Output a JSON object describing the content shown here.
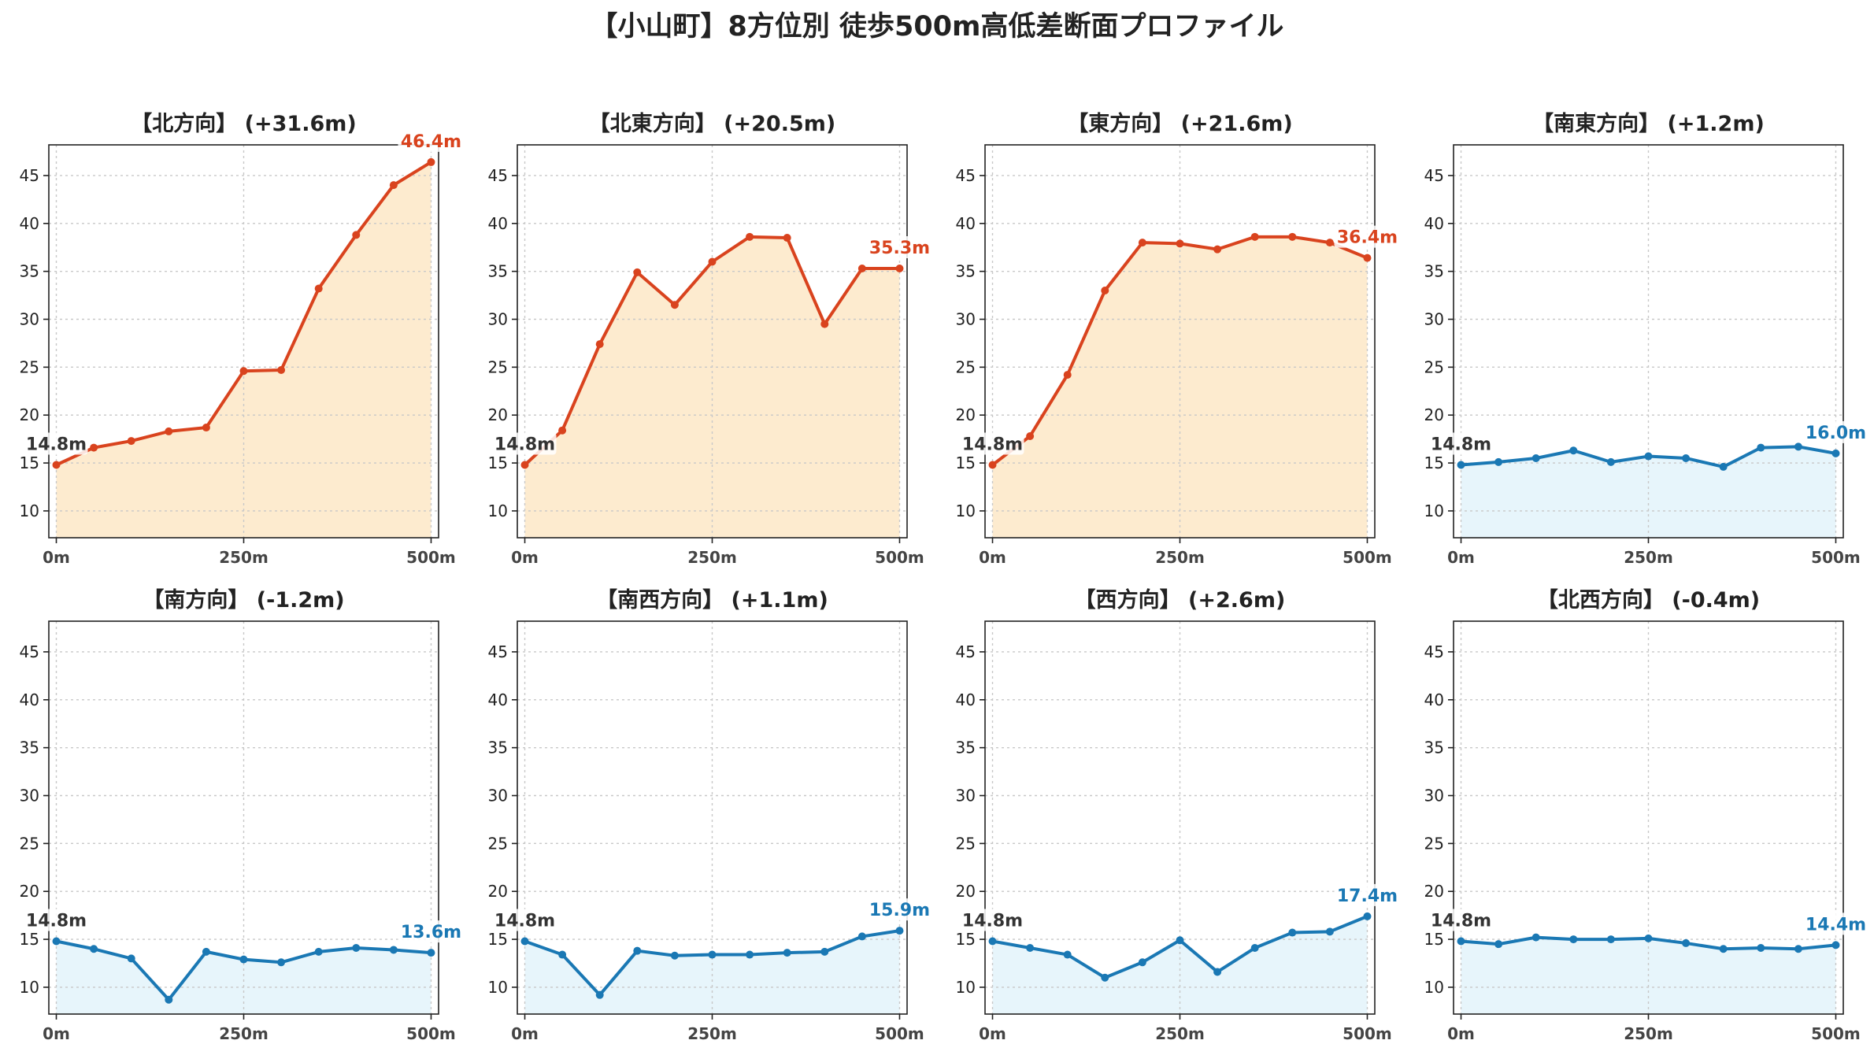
{
  "title": "【小山町】8方位別 徒歩500m高低差断面プロファイル",
  "colors": {
    "up_line": "#d9431e",
    "up_fill": "#fdebcf",
    "flat_line": "#1a78b4",
    "flat_fill": "#e7f5fb",
    "start_label": "#333333"
  },
  "chart_data": [
    {
      "type": "area",
      "title": "【北方向】 (+31.6m)",
      "x": [
        0,
        50,
        100,
        150,
        200,
        250,
        300,
        350,
        400,
        450,
        500
      ],
      "y": [
        14.8,
        16.6,
        17.3,
        18.3,
        18.7,
        24.6,
        24.7,
        33.2,
        38.8,
        44.0,
        46.4
      ],
      "start_label": "14.8m",
      "end_label": "46.4m",
      "trend": "up",
      "x_ticks": [
        "0m",
        "250m",
        "500m"
      ],
      "y_ticks": [
        10,
        15,
        20,
        25,
        30,
        35,
        40,
        45
      ],
      "ylim": [
        7.2,
        48.2
      ],
      "xlim": [
        -10,
        510
      ],
      "grid": true
    },
    {
      "type": "area",
      "title": "【北東方向】 (+20.5m)",
      "x": [
        0,
        50,
        100,
        150,
        200,
        250,
        300,
        350,
        400,
        450,
        500
      ],
      "y": [
        14.8,
        18.4,
        27.4,
        34.9,
        31.5,
        36.0,
        38.6,
        38.5,
        29.5,
        35.3,
        35.3
      ],
      "start_label": "14.8m",
      "end_label": "35.3m",
      "trend": "up",
      "x_ticks": [
        "0m",
        "250m",
        "500m"
      ],
      "y_ticks": [
        10,
        15,
        20,
        25,
        30,
        35,
        40,
        45
      ],
      "ylim": [
        7.2,
        48.2
      ],
      "xlim": [
        -10,
        510
      ],
      "grid": true
    },
    {
      "type": "area",
      "title": "【東方向】 (+21.6m)",
      "x": [
        0,
        50,
        100,
        150,
        200,
        250,
        300,
        350,
        400,
        450,
        500
      ],
      "y": [
        14.8,
        17.8,
        24.2,
        33.0,
        38.0,
        37.9,
        37.3,
        38.6,
        38.6,
        38.0,
        36.4
      ],
      "start_label": "14.8m",
      "end_label": "36.4m",
      "trend": "up",
      "x_ticks": [
        "0m",
        "250m",
        "500m"
      ],
      "y_ticks": [
        10,
        15,
        20,
        25,
        30,
        35,
        40,
        45
      ],
      "ylim": [
        7.2,
        48.2
      ],
      "xlim": [
        -10,
        510
      ],
      "grid": true
    },
    {
      "type": "area",
      "title": "【南東方向】 (+1.2m)",
      "x": [
        0,
        50,
        100,
        150,
        200,
        250,
        300,
        350,
        400,
        450,
        500
      ],
      "y": [
        14.8,
        15.1,
        15.5,
        16.3,
        15.1,
        15.7,
        15.5,
        14.6,
        16.6,
        16.7,
        16.0
      ],
      "start_label": "14.8m",
      "end_label": "16.0m",
      "trend": "flat",
      "x_ticks": [
        "0m",
        "250m",
        "500m"
      ],
      "y_ticks": [
        10,
        15,
        20,
        25,
        30,
        35,
        40,
        45
      ],
      "ylim": [
        7.2,
        48.2
      ],
      "xlim": [
        -10,
        510
      ],
      "grid": true
    },
    {
      "type": "area",
      "title": "【南方向】 (-1.2m)",
      "x": [
        0,
        50,
        100,
        150,
        200,
        250,
        300,
        350,
        400,
        450,
        500
      ],
      "y": [
        14.8,
        14.0,
        13.0,
        8.7,
        13.7,
        12.9,
        12.6,
        13.7,
        14.1,
        13.9,
        13.6
      ],
      "start_label": "14.8m",
      "end_label": "13.6m",
      "trend": "flat",
      "x_ticks": [
        "0m",
        "250m",
        "500m"
      ],
      "y_ticks": [
        10,
        15,
        20,
        25,
        30,
        35,
        40,
        45
      ],
      "ylim": [
        7.2,
        48.2
      ],
      "xlim": [
        -10,
        510
      ],
      "grid": true
    },
    {
      "type": "area",
      "title": "【南西方向】 (+1.1m)",
      "x": [
        0,
        50,
        100,
        150,
        200,
        250,
        300,
        350,
        400,
        450,
        500
      ],
      "y": [
        14.8,
        13.4,
        9.2,
        13.8,
        13.3,
        13.4,
        13.4,
        13.6,
        13.7,
        15.3,
        15.9
      ],
      "start_label": "14.8m",
      "end_label": "15.9m",
      "trend": "flat",
      "x_ticks": [
        "0m",
        "250m",
        "500m"
      ],
      "y_ticks": [
        10,
        15,
        20,
        25,
        30,
        35,
        40,
        45
      ],
      "ylim": [
        7.2,
        48.2
      ],
      "xlim": [
        -10,
        510
      ],
      "grid": true
    },
    {
      "type": "area",
      "title": "【西方向】 (+2.6m)",
      "x": [
        0,
        50,
        100,
        150,
        200,
        250,
        300,
        350,
        400,
        450,
        500
      ],
      "y": [
        14.8,
        14.1,
        13.4,
        11.0,
        12.6,
        14.9,
        11.6,
        14.1,
        15.7,
        15.8,
        17.4
      ],
      "start_label": "14.8m",
      "end_label": "17.4m",
      "trend": "flat",
      "x_ticks": [
        "0m",
        "250m",
        "500m"
      ],
      "y_ticks": [
        10,
        15,
        20,
        25,
        30,
        35,
        40,
        45
      ],
      "ylim": [
        7.2,
        48.2
      ],
      "xlim": [
        -10,
        510
      ],
      "grid": true
    },
    {
      "type": "area",
      "title": "【北西方向】 (-0.4m)",
      "x": [
        0,
        50,
        100,
        150,
        200,
        250,
        300,
        350,
        400,
        450,
        500
      ],
      "y": [
        14.8,
        14.5,
        15.2,
        15.0,
        15.0,
        15.1,
        14.6,
        14.0,
        14.1,
        14.0,
        14.4
      ],
      "start_label": "14.8m",
      "end_label": "14.4m",
      "trend": "flat",
      "x_ticks": [
        "0m",
        "250m",
        "500m"
      ],
      "y_ticks": [
        10,
        15,
        20,
        25,
        30,
        35,
        40,
        45
      ],
      "ylim": [
        7.2,
        48.2
      ],
      "xlim": [
        -10,
        510
      ],
      "grid": true
    }
  ]
}
